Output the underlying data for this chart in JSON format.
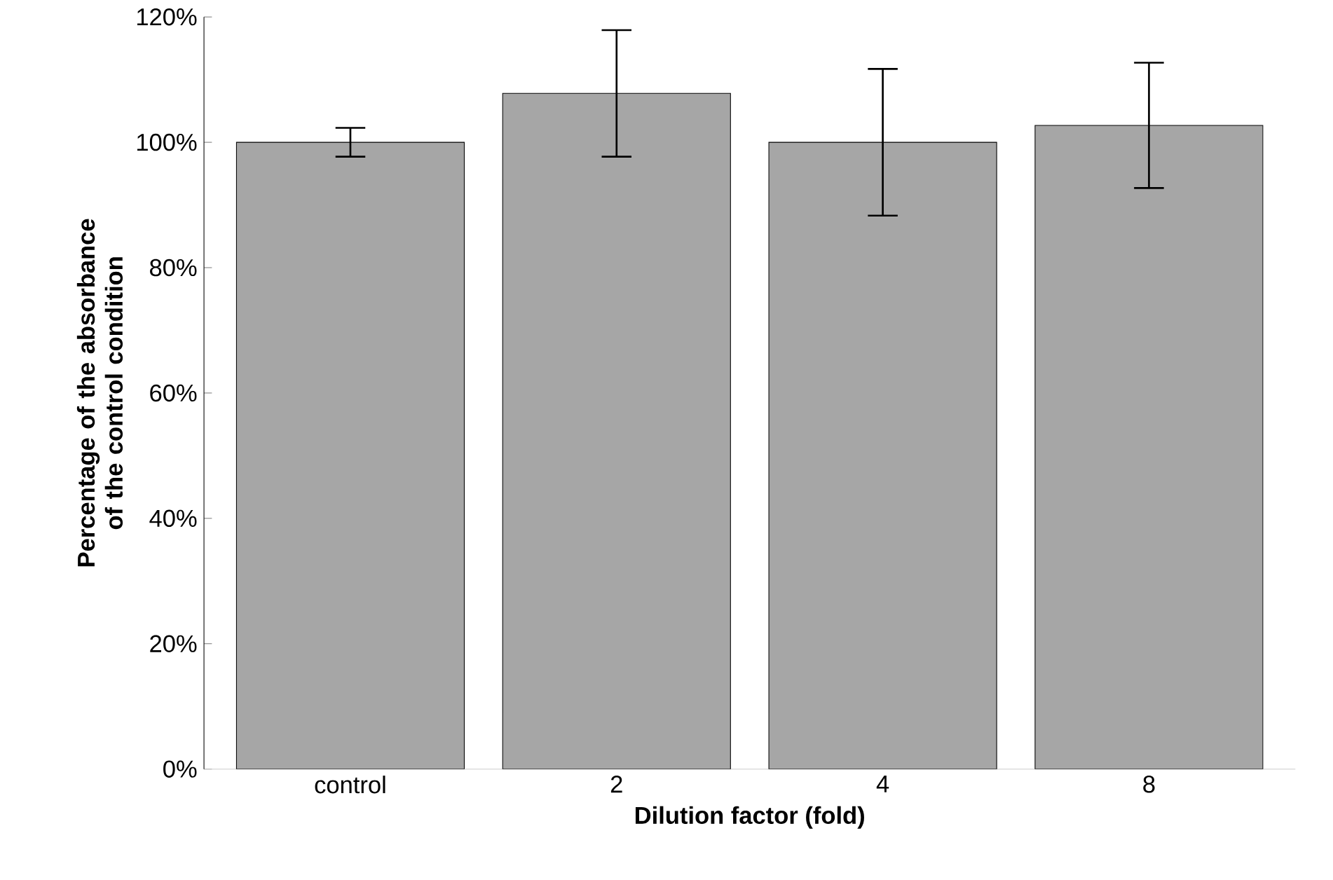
{
  "chart_data": {
    "type": "bar",
    "xlabel": "Dilution factor (fold)",
    "ylabel": "Percentage of the absorbance of the control condition",
    "categories": [
      "control",
      "2",
      "4",
      "8"
    ],
    "values": [
      100,
      107.8,
      100,
      102.7
    ],
    "errors": [
      2.3,
      10.1,
      11.7,
      10
    ],
    "color": "#a6a6a6",
    "ylim": [
      0,
      120
    ],
    "yticks": [
      {
        "value": 0,
        "label": "0%"
      },
      {
        "value": 20,
        "label": "20%"
      },
      {
        "value": 40,
        "label": "40%"
      },
      {
        "value": 60,
        "label": "60%"
      },
      {
        "value": 80,
        "label": "80%"
      },
      {
        "value": 100,
        "label": "100%"
      },
      {
        "value": 120,
        "label": "120%"
      }
    ],
    "grid": false
  }
}
